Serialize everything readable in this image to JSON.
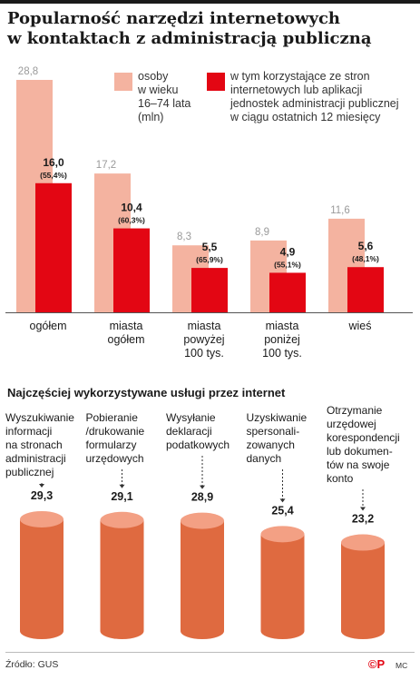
{
  "title": [
    "Popularność narzędzi internetowych",
    "w kontaktach z administracją publiczną"
  ],
  "legend": {
    "series1": [
      "osoby",
      "w wieku",
      "16–74 lata",
      "(mln)"
    ],
    "series2": [
      "w tym korzystające ze stron",
      "internetowych lub aplikacji",
      "jednostek administracji publicznej",
      "w ciągu ostatnich 12 miesięcy"
    ]
  },
  "colors": {
    "light": "#f4b3a0",
    "dark": "#e30613",
    "cyl_side": "#df6a40",
    "cyl_top": "#f3a084"
  },
  "chart_data": [
    {
      "type": "bar",
      "title": "Popularność narzędzi internetowych w kontaktach z administracją publiczną",
      "categories": [
        [
          "ogółem"
        ],
        [
          "miasta",
          "ogółem"
        ],
        [
          "miasta",
          "powyżej",
          "100 tys."
        ],
        [
          "miasta",
          "poniżej",
          "100 tys."
        ],
        [
          "wieś"
        ]
      ],
      "series": [
        {
          "name": "osoby w wieku 16–74 lata (mln)",
          "values": [
            28.8,
            17.2,
            8.3,
            8.9,
            11.6
          ],
          "labels": [
            "28,8",
            "17,2",
            "8,3",
            "8,9",
            "11,6"
          ]
        },
        {
          "name": "w tym korzystające ze stron internetowych lub aplikacji jednostek administracji publicznej w ciągu ostatnich 12 miesięcy",
          "values": [
            16.0,
            10.4,
            5.5,
            4.9,
            5.6
          ],
          "labels": [
            "16,0",
            "10,4",
            "5,5",
            "4,9",
            "5,6"
          ],
          "percent_labels": [
            "(55,4%)",
            "(60,3%)",
            "(65,9%)",
            "(55,1%)",
            "(48,1%)"
          ]
        }
      ],
      "ylim": [
        0,
        28.8
      ]
    },
    {
      "type": "bar",
      "title": "Najczęściej wykorzystywane usługi przez internet",
      "categories": [
        [
          "Wyszukiwanie",
          "informacji",
          "na stronach",
          "administracji",
          "publicznej"
        ],
        [
          "Pobieranie",
          "/drukowanie",
          "formularzy",
          "urzędowych"
        ],
        [
          "Wysyłanie",
          "deklaracji",
          "podatkowych"
        ],
        [
          "Uzyskiwanie",
          "spersonali-",
          "zowanych",
          "danych"
        ],
        [
          "Otrzymanie",
          "urzędowej",
          "korespondencji",
          "lub dokumen-",
          "tów na swoje",
          "konto"
        ]
      ],
      "values": [
        29.3,
        29.1,
        28.9,
        25.4,
        23.2
      ],
      "labels": [
        "29,3",
        "29,1",
        "28,9",
        "25,4",
        "23,2"
      ]
    }
  ],
  "footer": {
    "source": "Źródło: GUS",
    "logo": "©P",
    "author": "MC"
  }
}
